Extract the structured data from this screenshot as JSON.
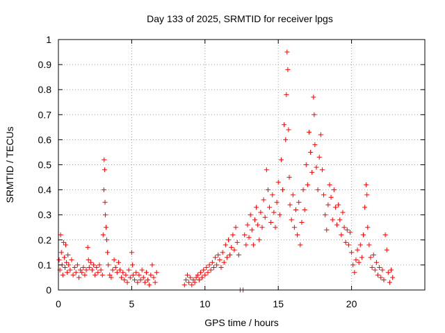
{
  "chart_data": {
    "type": "scatter",
    "title": "Day 133 of 2025, SRMTID for receiver lpgs",
    "xlabel": "GPS time / hours",
    "ylabel": "SRMTID / TECUs",
    "xlim": [
      0,
      25
    ],
    "ylim": [
      0,
      1
    ],
    "xticks": [
      0,
      5,
      10,
      15,
      20
    ],
    "xtick_labels": [
      "0",
      "5",
      "10",
      "15",
      "20"
    ],
    "yticks": [
      0,
      0.1,
      0.2,
      0.3,
      0.4,
      0.5,
      0.6,
      0.7,
      0.8,
      0.9,
      1
    ],
    "ytick_labels": [
      "0",
      "0.1",
      "0.2",
      "0.3",
      "0.4",
      "0.5",
      "0.6",
      "0.7",
      "0.8",
      "0.9",
      "1"
    ],
    "grid": true,
    "marker": "+",
    "marker_color": "#ff0000",
    "series": [
      {
        "name": "SRMTID",
        "points": [
          [
            0.05,
            0.12
          ],
          [
            0.1,
            0.08
          ],
          [
            0.15,
            0.22
          ],
          [
            0.2,
            0.15
          ],
          [
            0.25,
            0.1
          ],
          [
            0.3,
            0.06
          ],
          [
            0.35,
            0.19
          ],
          [
            0.4,
            0.13
          ],
          [
            0.45,
            0.09
          ],
          [
            0.5,
            0.18
          ],
          [
            0.55,
            0.11
          ],
          [
            0.6,
            0.07
          ],
          [
            0.65,
            0.14
          ],
          [
            0.7,
            0.1
          ],
          [
            0.8,
            0.08
          ],
          [
            0.9,
            0.12
          ],
          [
            1.0,
            0.06
          ],
          [
            1.1,
            0.09
          ],
          [
            1.2,
            0.07
          ],
          [
            1.3,
            0.1
          ],
          [
            1.4,
            0.05
          ],
          [
            1.5,
            0.08
          ],
          [
            1.6,
            0.07
          ],
          [
            1.7,
            0.09
          ],
          [
            1.8,
            0.06
          ],
          [
            1.9,
            0.08
          ],
          [
            2.0,
            0.17
          ],
          [
            2.05,
            0.12
          ],
          [
            2.1,
            0.09
          ],
          [
            2.2,
            0.11
          ],
          [
            2.3,
            0.08
          ],
          [
            2.4,
            0.1
          ],
          [
            2.5,
            0.06
          ],
          [
            2.6,
            0.09
          ],
          [
            2.7,
            0.07
          ],
          [
            2.8,
            0.1
          ],
          [
            2.9,
            0.08
          ],
          [
            3.0,
            0.06
          ],
          [
            3.05,
            0.22
          ],
          [
            3.1,
            0.4
          ],
          [
            3.12,
            0.52
          ],
          [
            3.15,
            0.48
          ],
          [
            3.18,
            0.35
          ],
          [
            3.2,
            0.3
          ],
          [
            3.25,
            0.25
          ],
          [
            3.3,
            0.2
          ],
          [
            3.35,
            0.15
          ],
          [
            3.4,
            0.1
          ],
          [
            3.5,
            0.06
          ],
          [
            3.6,
            0.05
          ],
          [
            3.7,
            0.08
          ],
          [
            3.8,
            0.12
          ],
          [
            3.9,
            0.09
          ],
          [
            4.0,
            0.07
          ],
          [
            4.1,
            0.11
          ],
          [
            4.2,
            0.08
          ],
          [
            4.3,
            0.05
          ],
          [
            4.4,
            0.07
          ],
          [
            4.5,
            0.04
          ],
          [
            4.6,
            0.06
          ],
          [
            4.7,
            0.03
          ],
          [
            4.8,
            0.08
          ],
          [
            4.9,
            0.05
          ],
          [
            5.0,
            0.15
          ],
          [
            5.05,
            0.1
          ],
          [
            5.1,
            0.06
          ],
          [
            5.2,
            0.04
          ],
          [
            5.3,
            0.07
          ],
          [
            5.4,
            0.03
          ],
          [
            5.5,
            0.06
          ],
          [
            5.6,
            0.04
          ],
          [
            5.7,
            0.08
          ],
          [
            5.8,
            0.05
          ],
          [
            5.9,
            0.03
          ],
          [
            6.0,
            0.07
          ],
          [
            6.1,
            0.04
          ],
          [
            6.2,
            0.02
          ],
          [
            6.3,
            0.06
          ],
          [
            6.4,
            0.1
          ],
          [
            6.5,
            0.05
          ],
          [
            6.6,
            0.03
          ],
          [
            6.7,
            0.07
          ],
          [
            8.6,
            0.02
          ],
          [
            8.7,
            0.04
          ],
          [
            8.8,
            0.06
          ],
          [
            8.9,
            0.03
          ],
          [
            9.0,
            0.05
          ],
          [
            9.1,
            0.02
          ],
          [
            9.2,
            0.04
          ],
          [
            9.3,
            0.03
          ],
          [
            9.4,
            0.05
          ],
          [
            9.5,
            0.06
          ],
          [
            9.6,
            0.04
          ],
          [
            9.7,
            0.07
          ],
          [
            9.8,
            0.05
          ],
          [
            9.9,
            0.08
          ],
          [
            10.0,
            0.06
          ],
          [
            10.1,
            0.09
          ],
          [
            10.2,
            0.07
          ],
          [
            10.3,
            0.1
          ],
          [
            10.4,
            0.08
          ],
          [
            10.5,
            0.11
          ],
          [
            10.6,
            0.09
          ],
          [
            10.7,
            0.13
          ],
          [
            10.8,
            0.1
          ],
          [
            10.9,
            0.14
          ],
          [
            11.0,
            0.12
          ],
          [
            11.1,
            0.09
          ],
          [
            11.2,
            0.15
          ],
          [
            11.3,
            0.11
          ],
          [
            11.4,
            0.18
          ],
          [
            11.5,
            0.13
          ],
          [
            11.6,
            0.2
          ],
          [
            11.7,
            0.14
          ],
          [
            11.8,
            0.17
          ],
          [
            11.9,
            0.22
          ],
          [
            12.0,
            0.16
          ],
          [
            12.1,
            0.25
          ],
          [
            12.2,
            0.19
          ],
          [
            12.3,
            0.14
          ],
          [
            12.4,
            0.0
          ],
          [
            12.6,
            0.0
          ],
          [
            12.7,
            0.22
          ],
          [
            12.8,
            0.18
          ],
          [
            12.9,
            0.26
          ],
          [
            13.0,
            0.21
          ],
          [
            13.1,
            0.3
          ],
          [
            13.2,
            0.24
          ],
          [
            13.3,
            0.18
          ],
          [
            13.4,
            0.28
          ],
          [
            13.5,
            0.33
          ],
          [
            13.6,
            0.26
          ],
          [
            13.7,
            0.2
          ],
          [
            13.8,
            0.31
          ],
          [
            13.9,
            0.25
          ],
          [
            14.0,
            0.36
          ],
          [
            14.1,
            0.29
          ],
          [
            14.2,
            0.48
          ],
          [
            14.3,
            0.4
          ],
          [
            14.4,
            0.33
          ],
          [
            14.5,
            0.27
          ],
          [
            14.6,
            0.38
          ],
          [
            14.7,
            0.31
          ],
          [
            14.8,
            0.25
          ],
          [
            14.9,
            0.35
          ],
          [
            15.0,
            0.43
          ],
          [
            15.1,
            0.3
          ],
          [
            15.2,
            0.52
          ],
          [
            15.3,
            0.4
          ],
          [
            15.4,
            0.66
          ],
          [
            15.5,
            0.6
          ],
          [
            15.55,
            0.78
          ],
          [
            15.6,
            0.95
          ],
          [
            15.65,
            0.88
          ],
          [
            15.7,
            0.64
          ],
          [
            15.75,
            0.45
          ],
          [
            15.8,
            0.34
          ],
          [
            15.9,
            0.28
          ],
          [
            16.0,
            0.38
          ],
          [
            16.1,
            0.25
          ],
          [
            16.2,
            0.32
          ],
          [
            16.3,
            0.22
          ],
          [
            16.4,
            0.35
          ],
          [
            16.5,
            0.18
          ],
          [
            16.6,
            0.27
          ],
          [
            16.7,
            0.4
          ],
          [
            16.8,
            0.32
          ],
          [
            16.9,
            0.5
          ],
          [
            17.0,
            0.42
          ],
          [
            17.1,
            0.63
          ],
          [
            17.2,
            0.55
          ],
          [
            17.3,
            0.47
          ],
          [
            17.4,
            0.77
          ],
          [
            17.45,
            0.7
          ],
          [
            17.5,
            0.58
          ],
          [
            17.6,
            0.49
          ],
          [
            17.7,
            0.4
          ],
          [
            17.8,
            0.53
          ],
          [
            17.9,
            0.62
          ],
          [
            18.0,
            0.48
          ],
          [
            18.1,
            0.38
          ],
          [
            18.2,
            0.3
          ],
          [
            18.3,
            0.24
          ],
          [
            18.4,
            0.34
          ],
          [
            18.5,
            0.42
          ],
          [
            18.6,
            0.37
          ],
          [
            18.7,
            0.28
          ],
          [
            18.8,
            0.4
          ],
          [
            18.9,
            0.33
          ],
          [
            19.0,
            0.26
          ],
          [
            19.1,
            0.34
          ],
          [
            19.2,
            0.28
          ],
          [
            19.3,
            0.22
          ],
          [
            19.4,
            0.31
          ],
          [
            19.5,
            0.25
          ],
          [
            19.6,
            0.19
          ],
          [
            19.7,
            0.24
          ],
          [
            19.8,
            0.18
          ],
          [
            19.9,
            0.23
          ],
          [
            20.0,
            0.15
          ],
          [
            20.1,
            0.1
          ],
          [
            20.2,
            0.07
          ],
          [
            20.3,
            0.12
          ],
          [
            20.4,
            0.16
          ],
          [
            20.5,
            0.11
          ],
          [
            20.6,
            0.18
          ],
          [
            20.7,
            0.13
          ],
          [
            20.8,
            0.22
          ],
          [
            20.9,
            0.33
          ],
          [
            21.0,
            0.42
          ],
          [
            21.05,
            0.38
          ],
          [
            21.1,
            0.25
          ],
          [
            21.2,
            0.18
          ],
          [
            21.3,
            0.13
          ],
          [
            21.4,
            0.09
          ],
          [
            21.5,
            0.14
          ],
          [
            21.6,
            0.08
          ],
          [
            21.7,
            0.11
          ],
          [
            21.8,
            0.06
          ],
          [
            21.9,
            0.09
          ],
          [
            22.0,
            0.05
          ],
          [
            22.1,
            0.08
          ],
          [
            22.2,
            0.04
          ],
          [
            22.3,
            0.22
          ],
          [
            22.4,
            0.16
          ],
          [
            22.5,
            0.07
          ],
          [
            22.6,
            0.03
          ],
          [
            22.7,
            0.08
          ],
          [
            22.8,
            0.05
          ]
        ]
      }
    ]
  }
}
